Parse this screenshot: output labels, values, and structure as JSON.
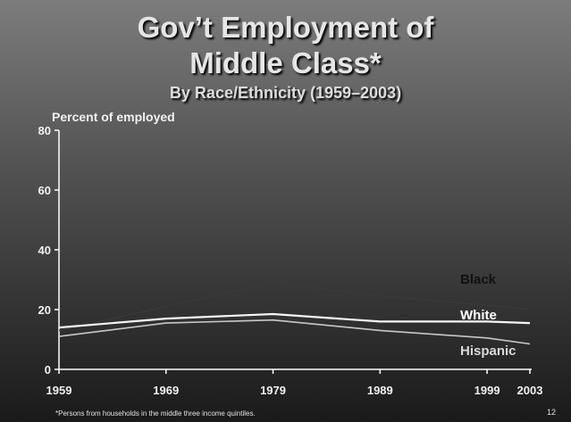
{
  "slide": {
    "title_line1": "Gov’t Employment of",
    "title_line2": "Middle Class*",
    "subtitle": "By Race/Ethnicity (1959–2003)",
    "footnote": "*Persons from households in the middle three income quintiles.",
    "page_number": "12"
  },
  "chart_data": {
    "type": "line",
    "title": "Gov’t Employment of Middle Class*",
    "subtitle": "By Race/Ethnicity (1959–2003)",
    "ylabel": "Percent of employed",
    "xlabel": "",
    "x": [
      1959,
      1969,
      1979,
      1989,
      1999,
      2003
    ],
    "x_tick_labels": [
      "1959",
      "1969",
      "1979",
      "1989",
      "1999",
      "2003"
    ],
    "y_ticks": [
      0,
      20,
      40,
      60,
      80
    ],
    "ylim": [
      0,
      80
    ],
    "grid": false,
    "series": [
      {
        "name": "Black",
        "values": [
          13,
          21,
          29,
          24.5,
          21.5,
          20
        ],
        "color": "#3a3a3a"
      },
      {
        "name": "White",
        "values": [
          14,
          17,
          18.5,
          16,
          16,
          15.5
        ],
        "color": "#f5f5f5"
      },
      {
        "name": "Hispanic",
        "values": [
          11,
          15.5,
          16.5,
          13,
          10.5,
          8.5
        ],
        "color": "#c8c8c8"
      }
    ],
    "label_colors": {
      "Black": "#101010",
      "White": "#ffffff",
      "Hispanic": "#d9d9d9"
    }
  }
}
